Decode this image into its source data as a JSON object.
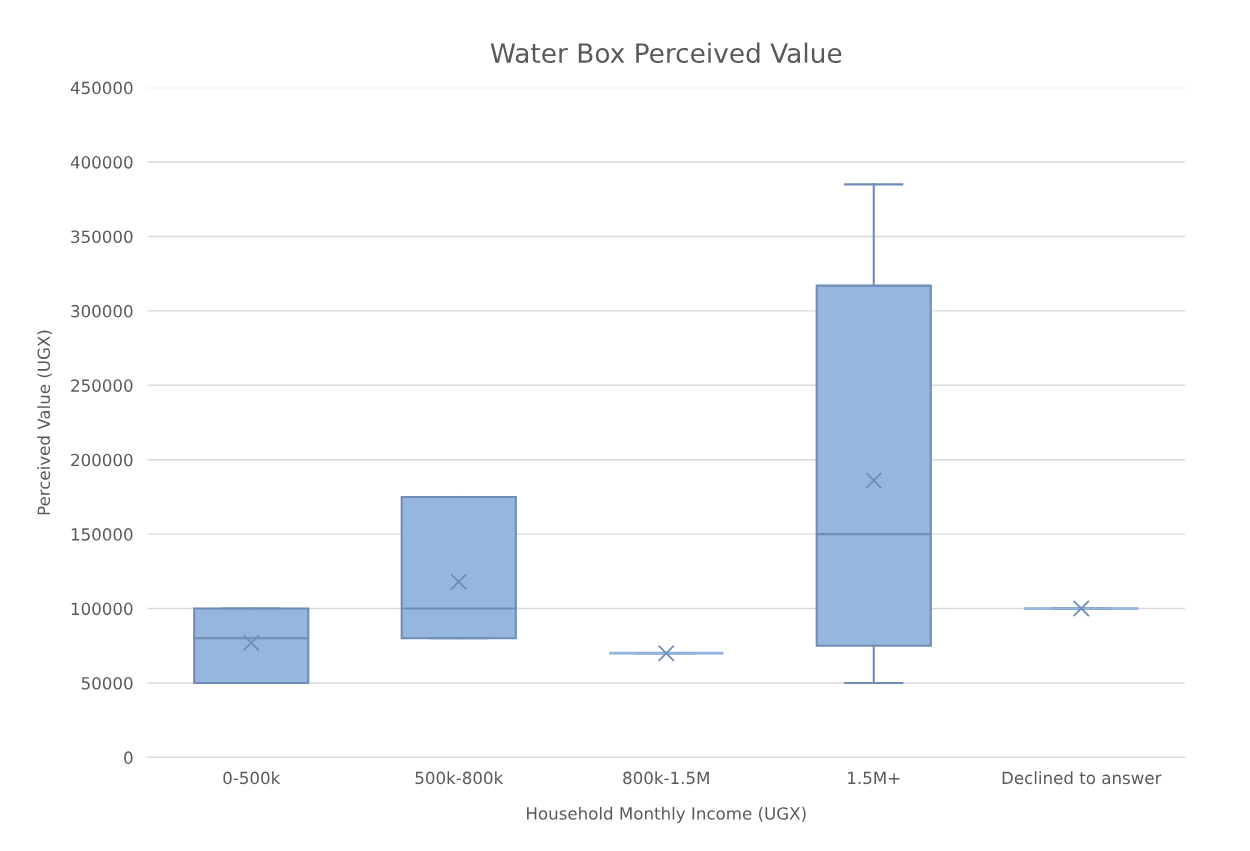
{
  "chart_data": {
    "type": "box",
    "title": "Water Box Perceived Value",
    "xlabel": "Household Monthly Income (UGX)",
    "ylabel": "Perceived Value (UGX)",
    "categories": [
      "0-500k",
      "500k-800k",
      "800k-1.5M",
      "1.5M+",
      "Declined to answer"
    ],
    "color": "#95b6de",
    "boxes": [
      {
        "low": 50000,
        "q1": 50000,
        "median": 80000,
        "q3": 100000,
        "high": 100000,
        "mean": 77000
      },
      {
        "low": 80000,
        "q1": 80000,
        "median": 100000,
        "q3": 175000,
        "high": 175000,
        "mean": 118000
      },
      {
        "low": 70000,
        "q1": 70000,
        "median": 70000,
        "q3": 70000,
        "high": 70000,
        "mean": 70000
      },
      {
        "low": 50000,
        "q1": 75000,
        "median": 150000,
        "q3": 317000,
        "high": 385000,
        "mean": 186000
      },
      {
        "low": 100000,
        "q1": 100000,
        "median": 100000,
        "q3": 100000,
        "high": 100000,
        "mean": 100000
      }
    ],
    "ylim": [
      0,
      450000
    ],
    "yticks": [
      0,
      50000,
      100000,
      150000,
      200000,
      250000,
      300000,
      350000,
      400000,
      450000
    ],
    "grid": "y"
  }
}
